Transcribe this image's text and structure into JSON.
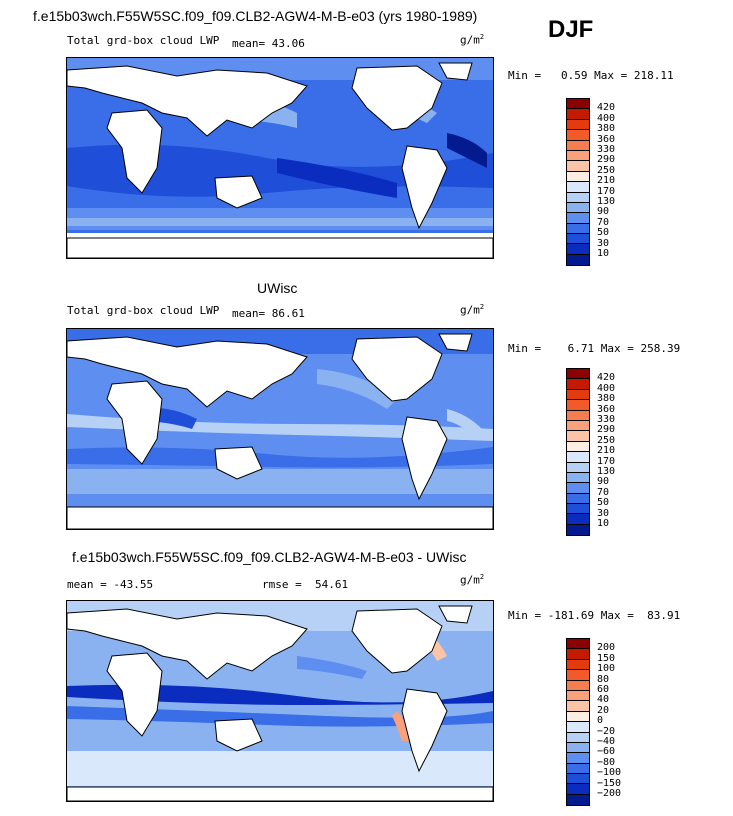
{
  "header": {
    "title": "f.e15b03wch.F55W5SC.f09_f09.CLB2-AGW4-M-B-e03 (yrs 1980-1989)",
    "season": "DJF"
  },
  "panels": [
    {
      "name": "model",
      "title": "",
      "variable": "Total grd-box cloud LWP",
      "mean_label": "mean=",
      "mean_value": "43.06",
      "units": "g/m",
      "units_sup": "2",
      "min_label": "Min =",
      "min_value": "0.59",
      "max_label": "Max =",
      "max_value": "218.11",
      "levels": [
        "420",
        "400",
        "380",
        "360",
        "330",
        "290",
        "250",
        "210",
        "170",
        "130",
        "90",
        "70",
        "50",
        "30",
        "10"
      ],
      "colors": [
        "#8b0000",
        "#c41a00",
        "#e33a10",
        "#f25a2a",
        "#f77c50",
        "#faa07a",
        "#fcc4a6",
        "#fdeee3",
        "#d9e8fb",
        "#b7d1f6",
        "#8bb2f0",
        "#5e8ff0",
        "#3a6ee8",
        "#1f4fd8",
        "#0a2cbf",
        "#031b8f"
      ]
    },
    {
      "name": "obs",
      "title": "UWisc",
      "variable": "Total grd-box cloud LWP",
      "mean_label": "mean=",
      "mean_value": "86.61",
      "units": "g/m",
      "units_sup": "2",
      "min_label": "Min =",
      "min_value": "6.71",
      "max_label": "Max =",
      "max_value": "258.39",
      "levels": [
        "420",
        "400",
        "380",
        "360",
        "330",
        "290",
        "250",
        "210",
        "170",
        "130",
        "90",
        "70",
        "50",
        "30",
        "10"
      ],
      "colors": [
        "#8b0000",
        "#c41a00",
        "#e33a10",
        "#f25a2a",
        "#f77c50",
        "#faa07a",
        "#fcc4a6",
        "#fdeee3",
        "#d9e8fb",
        "#b7d1f6",
        "#8bb2f0",
        "#5e8ff0",
        "#3a6ee8",
        "#1f4fd8",
        "#0a2cbf",
        "#031b8f"
      ]
    },
    {
      "name": "diff",
      "title": "f.e15b03wch.F55W5SC.f09_f09.CLB2-AGW4-M-B-e03 - UWisc",
      "variable": "",
      "mean_label": "mean =",
      "mean_value": "-43.55",
      "rmse_label": "rmse =",
      "rmse_value": "54.61",
      "units": "g/m",
      "units_sup": "2",
      "min_label": "Min =",
      "min_value": "-181.69",
      "max_label": "Max =",
      "max_value": "83.91",
      "levels": [
        "200",
        "150",
        "100",
        "80",
        "60",
        "40",
        "20",
        "0",
        "−20",
        "−40",
        "−60",
        "−80",
        "−100",
        "−150",
        "−200"
      ],
      "colors": [
        "#8b0000",
        "#c41a00",
        "#e33a10",
        "#f25a2a",
        "#f77c50",
        "#faa07a",
        "#fcc4a6",
        "#fdeee3",
        "#d9e8fb",
        "#b7d1f6",
        "#8bb2f0",
        "#5e8ff0",
        "#3a6ee8",
        "#1f4fd8",
        "#0a2cbf",
        "#031b8f"
      ]
    }
  ]
}
